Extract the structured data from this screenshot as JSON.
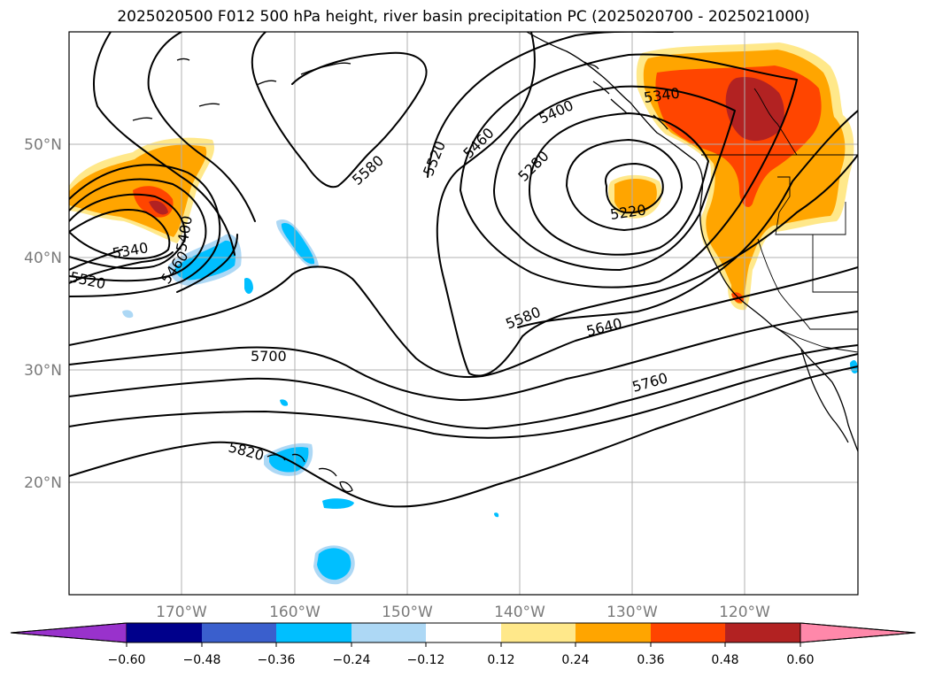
{
  "title": "2025020500 F012 500 hPa height, river basin precipitation PC (2025020700 - 2025021000)",
  "map": {
    "extent": {
      "lon_min": -180,
      "lon_max": -110,
      "lat_min": 10,
      "lat_max": 60
    },
    "lon_ticks": [
      {
        "value": -170,
        "label": "170°W"
      },
      {
        "value": -160,
        "label": "160°W"
      },
      {
        "value": -150,
        "label": "150°W"
      },
      {
        "value": -140,
        "label": "140°W"
      },
      {
        "value": -130,
        "label": "130°W"
      },
      {
        "value": -120,
        "label": "120°W"
      }
    ],
    "lat_ticks": [
      {
        "value": 20,
        "label": "20°N"
      },
      {
        "value": 30,
        "label": "30°N"
      },
      {
        "value": 40,
        "label": "40°N"
      },
      {
        "value": 50,
        "label": "50°N"
      }
    ],
    "grid": true,
    "contour_labels": [
      "5220",
      "5280",
      "5340",
      "5340",
      "5400",
      "5400",
      "5460",
      "5460",
      "5520",
      "5520",
      "5580",
      "5580",
      "5640",
      "5700",
      "5760",
      "5820"
    ]
  },
  "colorbar": {
    "ticks": [
      "−0.60",
      "−0.48",
      "−0.36",
      "−0.24",
      "−0.12",
      "0.12",
      "0.24",
      "0.36",
      "0.48",
      "0.60"
    ],
    "colors": [
      "#9932cc",
      "#00008b",
      "#3a5fcd",
      "#00bfff",
      "#add8f5",
      "#ffffff",
      "#ffe88a",
      "#ffa500",
      "#ff4500",
      "#b22222",
      "#ff88aa"
    ]
  }
}
